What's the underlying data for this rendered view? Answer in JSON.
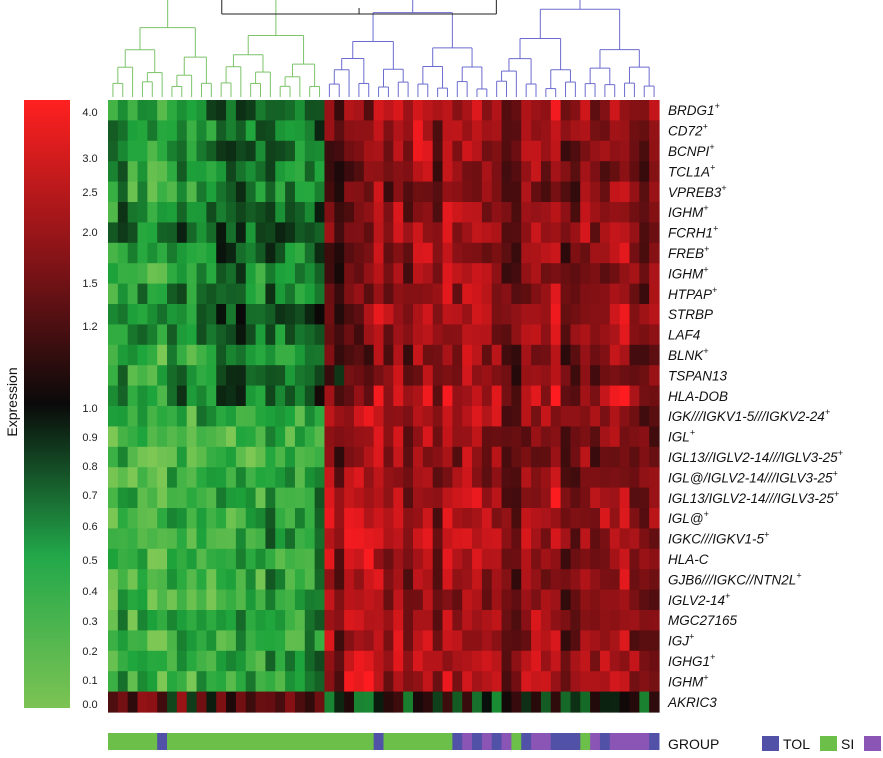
{
  "chart_data": {
    "type": "heatmap",
    "colorbar": {
      "title": "Expression",
      "ticks": [
        "4.0",
        "3.0",
        "2.5",
        "2.0",
        "1.5",
        "1.2",
        "1.0",
        "0.9",
        "0.8",
        "0.7",
        "0.6",
        "0.5",
        "0.4",
        "0.3",
        "0.2",
        "0.1",
        "0.0"
      ],
      "colors": {
        "low": "#6cc04a",
        "mid": "#000000",
        "high": "#ff1a1a"
      }
    },
    "rows": [
      {
        "gene": "BRDG1",
        "mark": "+"
      },
      {
        "gene": "CD72",
        "mark": "+"
      },
      {
        "gene": "BCNPI",
        "mark": "+"
      },
      {
        "gene": "TCL1A",
        "mark": "+"
      },
      {
        "gene": "VPREB3",
        "mark": "+"
      },
      {
        "gene": "IGHM",
        "mark": "+"
      },
      {
        "gene": "FCRH1",
        "mark": "+"
      },
      {
        "gene": "FREB",
        "mark": "+"
      },
      {
        "gene": "IGHM",
        "mark": "+"
      },
      {
        "gene": "HTPAP",
        "mark": "+"
      },
      {
        "gene": "STRBP",
        "mark": ""
      },
      {
        "gene": "LAF4",
        "mark": ""
      },
      {
        "gene": "BLNK",
        "mark": "+"
      },
      {
        "gene": "TSPAN13",
        "mark": ""
      },
      {
        "gene": "HLA-DOB",
        "mark": ""
      },
      {
        "gene": "IGK///IGKV1-5///IGKV2-24",
        "mark": "+"
      },
      {
        "gene": "IGL",
        "mark": "+"
      },
      {
        "gene": "IGL13//IGLV2-14///IGLV3-25",
        "mark": "+"
      },
      {
        "gene": "IGL@/IGLV2-14///IGLV3-25",
        "mark": "+"
      },
      {
        "gene": "IGL13/IGLV2-14///IGLV3-25",
        "mark": "+"
      },
      {
        "gene": "IGL@",
        "mark": "+"
      },
      {
        "gene": "IGKC///IGKV1-5",
        "mark": "+"
      },
      {
        "gene": "HLA-C",
        "mark": ""
      },
      {
        "gene": "GJB6///IGKC//NTN2L",
        "mark": "+"
      },
      {
        "gene": "IGLV2-14",
        "mark": "+"
      },
      {
        "gene": "MGC27165",
        "mark": ""
      },
      {
        "gene": "IGJ",
        "mark": "+"
      },
      {
        "gene": "IGHG1",
        "mark": "+"
      },
      {
        "gene": "IGHM",
        "mark": "+"
      },
      {
        "gene": "AKRIC3",
        "mark": ""
      }
    ],
    "n_columns": 56,
    "column_groups": [
      "SI",
      "SI",
      "SI",
      "SI",
      "SI",
      "TOL",
      "SI",
      "SI",
      "SI",
      "SI",
      "SI",
      "SI",
      "SI",
      "SI",
      "SI",
      "SI",
      "SI",
      "SI",
      "SI",
      "SI",
      "SI",
      "SI",
      "SI",
      "SI",
      "SI",
      "SI",
      "SI",
      "TOL",
      "SI",
      "SI",
      "SI",
      "SI",
      "SI",
      "SI",
      "SI",
      "TOL",
      "OTHER",
      "TOL",
      "OTHER",
      "TOL",
      "OTHER",
      "SI",
      "TOL",
      "OTHER",
      "OTHER",
      "TOL",
      "TOL",
      "TOL",
      "SI",
      "OTHER",
      "TOL",
      "OTHER",
      "OTHER",
      "OTHER",
      "OTHER",
      "TOL"
    ],
    "group_legend": {
      "title": "GROUP",
      "items": [
        {
          "label": "TOL",
          "color": "#5151a8"
        },
        {
          "label": "SI",
          "color": "#6cc04a"
        },
        {
          "label": "",
          "color": "#8a55b5"
        }
      ]
    },
    "dendrogram_colors": {
      "left_cluster": "#7cc36a",
      "right_cluster": "#6b6bd0",
      "root": "#222222"
    }
  }
}
